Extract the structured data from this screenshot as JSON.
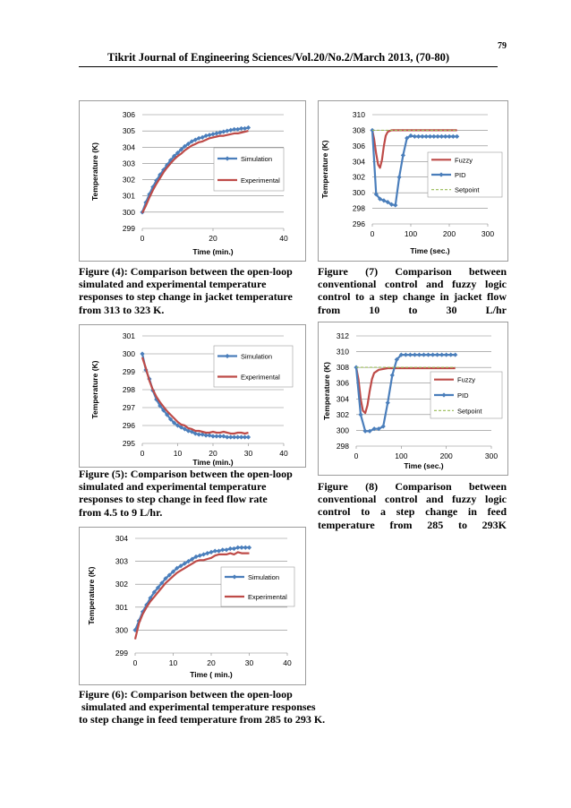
{
  "page": {
    "number": "79",
    "running_header": "Tikrit Journal of Engineering Sciences/Vol.20/No.2/March 2013, (70-80)"
  },
  "captions": {
    "fig4": [
      "Figure (4): Comparison between the open-loop",
      "simulated and experimental temperature",
      "responses to step change in jacket temperature",
      "from 313 to 323 K."
    ],
    "fig5": [
      "Figure (5): Comparison between the open-loop",
      "simulated and experimental temperature",
      "responses to step change in feed flow rate",
      "from 4.5 to 9 L/hr."
    ],
    "fig6": [
      "Figure (6): Comparison between the open-loop",
      " simulated and experimental temperature responses",
      "to step change in feed temperature from 285 to 293 K."
    ],
    "fig7": [
      "Figure (7) Comparison between",
      "conventional control and fuzzy logic",
      "control to a step change in jacket flow",
      "from 10 to 30 L/hr"
    ],
    "fig8": [
      "Figure (8) Comparison between",
      "conventional control and fuzzy logic",
      "control to a step change in feed",
      "temperature from 285 to 293K"
    ]
  },
  "colors": {
    "simulation": "#4a7ebb",
    "experimental": "#be4b48",
    "fuzzy": "#be4b48",
    "pid": "#4a7ebb",
    "setpoint": "#98b954",
    "grid": "#868686",
    "text": "#000000"
  },
  "chart_data": [
    {
      "id": "fig4",
      "type": "line",
      "xlabel": "Time (min.)",
      "ylabel": "Temperature (K)",
      "xlim": [
        0,
        40
      ],
      "ylim": [
        299,
        306
      ],
      "xticks": [
        "0",
        "20",
        "40"
      ],
      "yticks": [
        "299",
        "300",
        "301",
        "302",
        "303",
        "304",
        "305",
        "306"
      ],
      "legend": "right",
      "series": [
        {
          "name": "Simulation",
          "color": "simulation",
          "markers": true,
          "x": [
            0,
            1,
            2,
            3,
            4,
            5,
            6,
            7,
            8,
            9,
            10,
            11,
            12,
            13,
            14,
            15,
            16,
            17,
            18,
            19,
            20,
            21,
            22,
            23,
            24,
            25,
            26,
            27,
            28,
            29,
            30
          ],
          "y": [
            300.0,
            300.6,
            301.1,
            301.55,
            301.95,
            302.3,
            302.6,
            302.9,
            303.2,
            303.45,
            303.65,
            303.85,
            304.05,
            304.2,
            304.35,
            304.45,
            304.55,
            304.6,
            304.7,
            304.75,
            304.8,
            304.85,
            304.9,
            304.95,
            305.0,
            305.05,
            305.1,
            305.1,
            305.15,
            305.15,
            305.2
          ]
        },
        {
          "name": "Experimental",
          "color": "experimental",
          "markers": false,
          "x": [
            0,
            1,
            2,
            3,
            4,
            5,
            6,
            7,
            8,
            9,
            10,
            11,
            12,
            13,
            14,
            15,
            16,
            17,
            18,
            19,
            20,
            21,
            22,
            23,
            24,
            25,
            26,
            27,
            28,
            29,
            30
          ],
          "y": [
            299.95,
            300.4,
            300.9,
            301.35,
            301.75,
            302.1,
            302.45,
            302.75,
            303.0,
            303.25,
            303.45,
            303.6,
            303.8,
            303.95,
            304.1,
            304.2,
            304.3,
            304.35,
            304.45,
            304.55,
            304.6,
            304.65,
            304.7,
            304.7,
            304.75,
            304.8,
            304.85,
            304.85,
            304.9,
            304.95,
            305.0
          ]
        }
      ]
    },
    {
      "id": "fig5",
      "type": "line",
      "xlabel": "Time (min.)",
      "ylabel": "Temperature (K)",
      "xlim": [
        0,
        40
      ],
      "ylim": [
        295,
        301
      ],
      "xticks": [
        "0",
        "10",
        "20",
        "30",
        "40"
      ],
      "yticks": [
        "295",
        "296",
        "297",
        "298",
        "299",
        "300",
        "301"
      ],
      "legend": "top-right",
      "series": [
        {
          "name": "Simulation",
          "color": "simulation",
          "markers": true,
          "x": [
            0,
            1,
            2,
            3,
            4,
            5,
            6,
            7,
            8,
            9,
            10,
            11,
            12,
            13,
            14,
            15,
            16,
            17,
            18,
            19,
            20,
            21,
            22,
            23,
            24,
            25,
            26,
            27,
            28,
            29,
            30
          ],
          "y": [
            300.0,
            299.1,
            298.6,
            297.95,
            297.45,
            297.1,
            296.85,
            296.6,
            296.35,
            296.15,
            296.0,
            295.9,
            295.8,
            295.7,
            295.65,
            295.55,
            295.5,
            295.5,
            295.45,
            295.45,
            295.4,
            295.4,
            295.4,
            295.4,
            295.35,
            295.35,
            295.35,
            295.35,
            295.35,
            295.35,
            295.35
          ]
        },
        {
          "name": "Experimental",
          "color": "experimental",
          "markers": false,
          "x": [
            0,
            1,
            2,
            3,
            4,
            5,
            6,
            7,
            8,
            9,
            10,
            11,
            12,
            13,
            14,
            15,
            16,
            17,
            18,
            19,
            20,
            21,
            22,
            23,
            24,
            25,
            26,
            27,
            28,
            29,
            30
          ],
          "y": [
            299.8,
            299.2,
            298.5,
            298.0,
            297.6,
            297.3,
            297.05,
            296.8,
            296.6,
            296.4,
            296.2,
            296.05,
            296.0,
            295.85,
            295.8,
            295.7,
            295.7,
            295.65,
            295.6,
            295.6,
            295.65,
            295.6,
            295.6,
            295.65,
            295.6,
            295.55,
            295.55,
            295.6,
            295.6,
            295.55,
            295.6
          ]
        }
      ]
    },
    {
      "id": "fig6",
      "type": "line",
      "xlabel": "Time ( min.)",
      "ylabel": "Temperature (K)",
      "xlim": [
        0,
        40
      ],
      "ylim": [
        299,
        304
      ],
      "xticks": [
        "0",
        "10",
        "20",
        "30",
        "40"
      ],
      "yticks": [
        "299",
        "300",
        "301",
        "302",
        "303",
        "304"
      ],
      "legend": "right",
      "series": [
        {
          "name": "Simulation",
          "color": "simulation",
          "markers": true,
          "x": [
            0,
            1,
            2,
            3,
            4,
            5,
            6,
            7,
            8,
            9,
            10,
            11,
            12,
            13,
            14,
            15,
            16,
            17,
            18,
            19,
            20,
            21,
            22,
            23,
            24,
            25,
            26,
            27,
            28,
            29,
            30
          ],
          "y": [
            300.0,
            300.4,
            300.8,
            301.1,
            301.4,
            301.65,
            301.85,
            302.05,
            302.25,
            302.4,
            302.55,
            302.7,
            302.8,
            302.9,
            303.0,
            303.1,
            303.2,
            303.25,
            303.3,
            303.35,
            303.4,
            303.45,
            303.45,
            303.5,
            303.5,
            303.55,
            303.55,
            303.6,
            303.6,
            303.6,
            303.6
          ]
        },
        {
          "name": "Experimental",
          "color": "experimental",
          "markers": false,
          "x": [
            0,
            1,
            2,
            3,
            4,
            5,
            6,
            7,
            8,
            9,
            10,
            11,
            12,
            13,
            14,
            15,
            16,
            17,
            18,
            19,
            20,
            21,
            22,
            23,
            24,
            25,
            26,
            27,
            28,
            29,
            30
          ],
          "y": [
            299.6,
            300.3,
            300.7,
            301.0,
            301.25,
            301.45,
            301.65,
            301.85,
            302.05,
            302.2,
            302.35,
            302.5,
            302.6,
            302.7,
            302.8,
            302.9,
            303.0,
            303.05,
            303.05,
            303.1,
            303.15,
            303.25,
            303.3,
            303.3,
            303.3,
            303.35,
            303.3,
            303.4,
            303.35,
            303.35,
            303.35
          ]
        }
      ]
    },
    {
      "id": "fig7",
      "type": "line",
      "xlabel": "Time (sec.)",
      "ylabel": "Temperature (K)",
      "xlim": [
        0,
        300
      ],
      "ylim": [
        296,
        310
      ],
      "xticks": [
        "0",
        "100",
        "200",
        "300"
      ],
      "yticks": [
        "296",
        "298",
        "300",
        "302",
        "304",
        "306",
        "308",
        "310"
      ],
      "legend": "right",
      "series": [
        {
          "name": "Fuzzy",
          "color": "fuzzy",
          "markers": false,
          "x": [
            0,
            5,
            10,
            15,
            20,
            25,
            30,
            35,
            40,
            45,
            50,
            60,
            70,
            80,
            100,
            120,
            150,
            180,
            220
          ],
          "y": [
            308.0,
            306.8,
            305.0,
            303.6,
            303.2,
            304.2,
            306.0,
            307.3,
            307.8,
            307.9,
            308.0,
            308.0,
            308.0,
            308.0,
            308.0,
            308.0,
            308.0,
            308.0,
            308.0
          ]
        },
        {
          "name": "PID",
          "color": "pid",
          "markers": true,
          "x": [
            0,
            10,
            20,
            30,
            40,
            50,
            60,
            70,
            80,
            90,
            100,
            110,
            120,
            130,
            140,
            150,
            160,
            170,
            180,
            190,
            200,
            210,
            220
          ],
          "y": [
            308.0,
            299.8,
            299.2,
            299.0,
            298.8,
            298.5,
            298.4,
            302.0,
            304.8,
            307.0,
            307.3,
            307.2,
            307.2,
            307.2,
            307.2,
            307.2,
            307.2,
            307.2,
            307.2,
            307.2,
            307.2,
            307.2,
            307.2
          ]
        },
        {
          "name": "Setpoint",
          "color": "setpoint",
          "markers": false,
          "dashed": true,
          "x": [
            0,
            220
          ],
          "y": [
            308.0,
            308.0
          ]
        }
      ]
    },
    {
      "id": "fig8",
      "type": "line",
      "xlabel": "Time (sec.)",
      "ylabel": "Temperature (K)",
      "xlim": [
        0,
        300
      ],
      "ylim": [
        298,
        312
      ],
      "xticks": [
        "0",
        "100",
        "200",
        "300"
      ],
      "yticks": [
        "298",
        "300",
        "302",
        "304",
        "306",
        "308",
        "310",
        "312"
      ],
      "legend": "right",
      "series": [
        {
          "name": "Fuzzy",
          "color": "fuzzy",
          "markers": false,
          "x": [
            0,
            5,
            10,
            15,
            20,
            25,
            30,
            35,
            40,
            50,
            60,
            70,
            80,
            100,
            120,
            150,
            180,
            220
          ],
          "y": [
            308.0,
            306.5,
            304.0,
            302.5,
            302.2,
            303.2,
            305.0,
            306.5,
            307.3,
            307.7,
            307.8,
            307.9,
            307.9,
            307.9,
            307.9,
            307.9,
            307.9,
            307.9
          ]
        },
        {
          "name": "PID",
          "color": "pid",
          "markers": true,
          "x": [
            0,
            10,
            20,
            30,
            40,
            50,
            60,
            70,
            80,
            90,
            100,
            110,
            120,
            130,
            140,
            150,
            160,
            170,
            180,
            190,
            200,
            210,
            220
          ],
          "y": [
            308.0,
            302.0,
            299.9,
            299.9,
            300.2,
            300.2,
            300.5,
            303.5,
            307.0,
            309.0,
            309.6,
            309.6,
            309.6,
            309.6,
            309.6,
            309.6,
            309.6,
            309.6,
            309.6,
            309.6,
            309.6,
            309.6,
            309.6
          ]
        },
        {
          "name": "Setpoint",
          "color": "setpoint",
          "markers": false,
          "dashed": true,
          "x": [
            0,
            220
          ],
          "y": [
            308.0,
            308.0
          ]
        }
      ]
    }
  ]
}
